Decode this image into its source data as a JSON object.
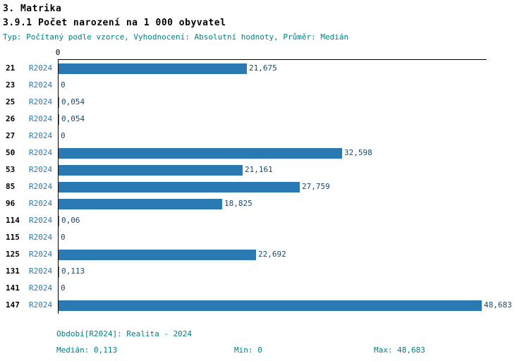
{
  "header": {
    "title": "3. Matrika",
    "subtitle": "3.9.1 Počet narození na 1 000 obyvatel",
    "meta": "Typ: Počítaný podle vzorce, Vyhodnocení: Absolutní hodnoty, Průměr: Medián"
  },
  "chart_data": {
    "type": "bar",
    "orientation": "horizontal",
    "title": "3.9.1 Počet narození na 1 000 obyvatel",
    "axis_origin_label": "0",
    "period_label": "R2024",
    "categories": [
      "21",
      "23",
      "25",
      "26",
      "27",
      "50",
      "53",
      "85",
      "96",
      "114",
      "115",
      "125",
      "131",
      "141",
      "147"
    ],
    "values": [
      21.675,
      0,
      0.054,
      0.054,
      0,
      32.598,
      21.161,
      27.759,
      18.825,
      0.06,
      0,
      22.692,
      0.113,
      0,
      48.683
    ],
    "value_labels": [
      "21,675",
      "0",
      "0,054",
      "0,054",
      "0",
      "32,598",
      "21,161",
      "27,759",
      "18,825",
      "0,06",
      "0",
      "22,692",
      "0,113",
      "0",
      "48,683"
    ],
    "xlim": [
      0,
      48.683
    ],
    "bar_color": "#2a79b2",
    "grid": false,
    "legend_position": "none"
  },
  "footer": {
    "period": "Období[R2024]: Realita - 2024",
    "median": "Medián: 0,113",
    "min": "Min: 0",
    "max": "Max: 48,683"
  }
}
